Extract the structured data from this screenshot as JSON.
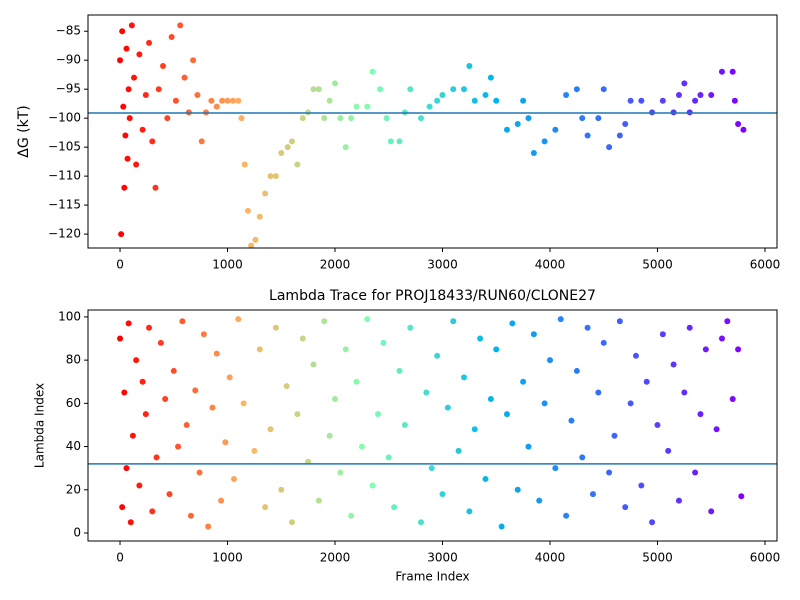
{
  "chart_data": [
    {
      "type": "scatter",
      "ylabel": "ΔG (kT)",
      "x": [
        0,
        10,
        20,
        30,
        40,
        50,
        60,
        70,
        80,
        90,
        110,
        130,
        150,
        180,
        210,
        240,
        270,
        300,
        330,
        360,
        400,
        440,
        480,
        520,
        560,
        600,
        640,
        680,
        720,
        760,
        800,
        850,
        900,
        950,
        1000,
        1050,
        1100,
        1130,
        1160,
        1190,
        1220,
        1260,
        1300,
        1350,
        1400,
        1450,
        1500,
        1560,
        1600,
        1650,
        1700,
        1750,
        1800,
        1850,
        1900,
        1950,
        2000,
        2050,
        2100,
        2150,
        2200,
        2300,
        2350,
        2420,
        2480,
        2520,
        2600,
        2650,
        2700,
        2800,
        2880,
        2950,
        3000,
        3100,
        3200,
        3250,
        3300,
        3400,
        3450,
        3500,
        3600,
        3700,
        3750,
        3800,
        3850,
        3950,
        4050,
        4150,
        4250,
        4300,
        4350,
        4450,
        4500,
        4550,
        4650,
        4700,
        4750,
        4850,
        4950,
        5050,
        5150,
        5200,
        5250,
        5300,
        5350,
        5400,
        5500,
        5600,
        5700,
        5720,
        5750,
        5800
      ],
      "y": [
        -90,
        -120,
        -85,
        -98,
        -112,
        -103,
        -88,
        -107,
        -95,
        -100,
        -84,
        -93,
        -108,
        -89,
        -102,
        -96,
        -87,
        -104,
        -112,
        -95,
        -91,
        -100,
        -86,
        -97,
        -84,
        -93,
        -99,
        -90,
        -96,
        -104,
        -99,
        -97,
        -98,
        -97,
        -97,
        -97,
        -97,
        -100,
        -108,
        -116,
        -122,
        -121,
        -117,
        -113,
        -110,
        -110,
        -106,
        -105,
        -104,
        -108,
        -100,
        -99,
        -95,
        -95,
        -100,
        -97,
        -94,
        -100,
        -105,
        -100,
        -98,
        -98,
        -92,
        -95,
        -100,
        -104,
        -104,
        -99,
        -95,
        -100,
        -98,
        -97,
        -96,
        -95,
        -95,
        -91,
        -97,
        -96,
        -93,
        -97,
        -102,
        -101,
        -97,
        -100,
        -106,
        -104,
        -102,
        -96,
        -95,
        -100,
        -103,
        -100,
        -95,
        -105,
        -103,
        -101,
        -97,
        -97,
        -99,
        -97,
        -99,
        -96,
        -94,
        -99,
        -97,
        -96,
        -96,
        -92,
        -92,
        -97,
        -101,
        -102
      ],
      "colormap": [
        "#ff0000",
        "#ffb360",
        "#80ffb4",
        "#00b5eb",
        "#4062fa",
        "#8000ff"
      ],
      "hline": -99.1,
      "hline_color": "#1f77b4",
      "xlim": [
        -298,
        6112
      ],
      "xticks": [
        0,
        1000,
        2000,
        3000,
        4000,
        5000,
        6000
      ],
      "ylim": [
        -122.4,
        -82.2
      ],
      "yticks": [
        {
          "value": -120,
          "label": "−120"
        },
        {
          "value": -115,
          "label": "−115"
        },
        {
          "value": -110,
          "label": "−110"
        },
        {
          "value": -105,
          "label": "−105"
        },
        {
          "value": -100,
          "label": "−100"
        },
        {
          "value": -95,
          "label": "−95"
        },
        {
          "value": -90,
          "label": "−90"
        },
        {
          "value": -85,
          "label": "−85"
        }
      ]
    },
    {
      "type": "scatter",
      "title": "Lambda Trace for PROJ18433/RUN60/CLONE27",
      "xlabel": "Frame Index",
      "ylabel": "Lambda Index",
      "x": [
        0,
        20,
        40,
        60,
        80,
        100,
        120,
        150,
        180,
        210,
        240,
        270,
        300,
        340,
        380,
        420,
        460,
        500,
        540,
        580,
        620,
        660,
        700,
        740,
        780,
        820,
        860,
        900,
        940,
        980,
        1020,
        1060,
        1100,
        1150,
        1250,
        1300,
        1350,
        1400,
        1450,
        1500,
        1550,
        1600,
        1650,
        1700,
        1750,
        1800,
        1850,
        1900,
        1950,
        2000,
        2050,
        2100,
        2150,
        2200,
        2250,
        2300,
        2350,
        2400,
        2450,
        2500,
        2550,
        2600,
        2650,
        2700,
        2800,
        2850,
        2900,
        2950,
        3000,
        3050,
        3100,
        3150,
        3200,
        3250,
        3300,
        3350,
        3400,
        3450,
        3500,
        3550,
        3600,
        3650,
        3700,
        3750,
        3800,
        3850,
        3900,
        3950,
        4000,
        4050,
        4100,
        4150,
        4200,
        4250,
        4300,
        4350,
        4400,
        4450,
        4500,
        4550,
        4600,
        4650,
        4700,
        4750,
        4800,
        4850,
        4900,
        4950,
        5000,
        5050,
        5100,
        5150,
        5200,
        5250,
        5300,
        5350,
        5400,
        5450,
        5500,
        5550,
        5600,
        5650,
        5700,
        5750,
        5780
      ],
      "y": [
        90,
        12,
        65,
        30,
        97,
        5,
        45,
        80,
        22,
        70,
        55,
        95,
        10,
        35,
        88,
        62,
        18,
        75,
        40,
        98,
        50,
        8,
        66,
        28,
        92,
        3,
        58,
        83,
        15,
        42,
        72,
        25,
        99,
        60,
        38,
        85,
        12,
        48,
        95,
        20,
        68,
        5,
        55,
        90,
        33,
        78,
        15,
        98,
        45,
        62,
        28,
        85,
        8,
        70,
        40,
        99,
        22,
        55,
        88,
        35,
        12,
        75,
        50,
        95,
        5,
        65,
        30,
        82,
        18,
        58,
        98,
        38,
        72,
        10,
        48,
        90,
        25,
        62,
        85,
        3,
        55,
        97,
        20,
        70,
        40,
        92,
        15,
        60,
        80,
        30,
        99,
        8,
        52,
        75,
        35,
        95,
        18,
        65,
        88,
        28,
        45,
        98,
        12,
        60,
        82,
        22,
        70,
        5,
        50,
        92,
        38,
        78,
        15,
        65,
        95,
        28,
        55,
        85,
        10,
        48,
        90,
        98,
        62,
        85,
        17
      ],
      "colormap": [
        "#ff0000",
        "#ffb360",
        "#80ffb4",
        "#00b5eb",
        "#4062fa",
        "#8000ff"
      ],
      "hline": 32,
      "hline_color": "#1f77b4",
      "xlim": [
        -298,
        6112
      ],
      "xticks": [
        0,
        1000,
        2000,
        3000,
        4000,
        5000,
        6000
      ],
      "ylim": [
        -3.7,
        103.2
      ],
      "yticks": [
        0,
        20,
        40,
        60,
        80,
        100
      ]
    }
  ]
}
